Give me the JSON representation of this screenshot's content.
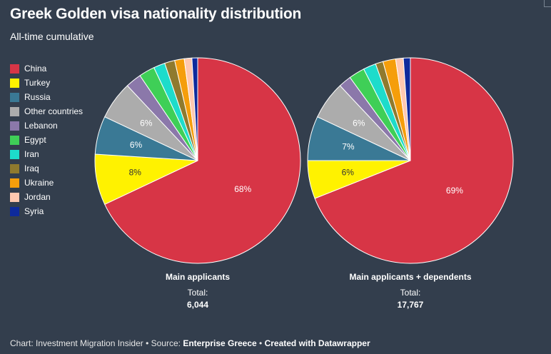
{
  "title": "Greek Golden visa nationality distribution",
  "subtitle": "All-time cumulative",
  "legend": [
    {
      "name": "China",
      "color": "#d73546"
    },
    {
      "name": "Turkey",
      "color": "#fff200"
    },
    {
      "name": "Russia",
      "color": "#3a7995"
    },
    {
      "name": "Other countries",
      "color": "#acacac"
    },
    {
      "name": "Lebanon",
      "color": "#8b78aa"
    },
    {
      "name": "Egypt",
      "color": "#3fcf57"
    },
    {
      "name": "Iran",
      "color": "#1ddccb"
    },
    {
      "name": "Iraq",
      "color": "#8f7a2e"
    },
    {
      "name": "Ukraine",
      "color": "#f59e0b"
    },
    {
      "name": "Jordan",
      "color": "#ffc8b0"
    },
    {
      "name": "Syria",
      "color": "#0e2a9c"
    }
  ],
  "chart_data": [
    {
      "type": "pie",
      "title": "Main applicants",
      "total_label": "Total:",
      "total": "6,044",
      "labels": [
        "China",
        "Turkey",
        "Russia",
        "Other countries",
        "Lebanon",
        "Egypt",
        "Iran",
        "Iraq",
        "Ukraine",
        "Jordan",
        "Syria"
      ],
      "values": [
        68,
        8,
        6,
        6,
        2.5,
        2.5,
        1.8,
        1.6,
        1.5,
        1.2,
        0.9
      ],
      "data_labels": [
        "68%",
        "8%",
        "6%",
        "6%",
        "",
        "",
        "",
        "",
        "",
        "",
        ""
      ]
    },
    {
      "type": "pie",
      "title": "Main applicants + dependents",
      "total_label": "Total:",
      "total": "17,767",
      "labels": [
        "China",
        "Turkey",
        "Russia",
        "Other countries",
        "Lebanon",
        "Egypt",
        "Iran",
        "Iraq",
        "Ukraine",
        "Jordan",
        "Syria"
      ],
      "values": [
        69,
        6,
        7,
        6,
        2,
        2.5,
        2,
        1.2,
        2,
        1.2,
        1.1
      ],
      "data_labels": [
        "69%",
        "6%",
        "7%",
        "6%",
        "",
        "",
        "",
        "",
        "",
        "",
        ""
      ]
    }
  ],
  "footer": {
    "prefix": "Chart: Investment Migration Insider • Source: ",
    "source": "Enterprise Greece",
    "sep": " • ",
    "credit": "Created with Datawrapper"
  }
}
